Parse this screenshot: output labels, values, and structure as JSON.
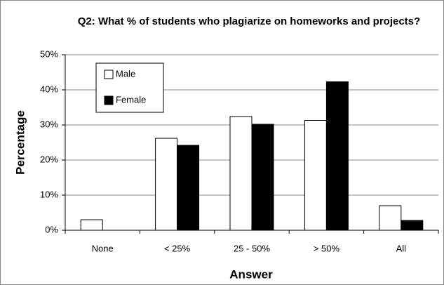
{
  "chart_data": {
    "type": "bar",
    "title": "Q2: What % of students who plagiarize on homeworks and projects?",
    "x_label": "Answer",
    "y_label": "Percentage",
    "categories": [
      "None",
      "< 25%",
      "25 - 50%",
      "> 50%",
      "All"
    ],
    "series": [
      {
        "name": "Male",
        "color": "#ffffff",
        "values": [
          3.0,
          26.2,
          32.4,
          31.3,
          7.0
        ]
      },
      {
        "name": "Female",
        "color": "#000000",
        "values": [
          0,
          24.2,
          30.2,
          42.3,
          2.8
        ]
      }
    ],
    "ylim": [
      0,
      50
    ],
    "yticks": [
      {
        "value": 0,
        "label": "0%"
      },
      {
        "value": 10,
        "label": "10%"
      },
      {
        "value": 20,
        "label": "20%"
      },
      {
        "value": 30,
        "label": "30%"
      },
      {
        "value": 40,
        "label": "40%"
      },
      {
        "value": 50,
        "label": "50%"
      }
    ],
    "grid": true,
    "legend": "upper left"
  }
}
